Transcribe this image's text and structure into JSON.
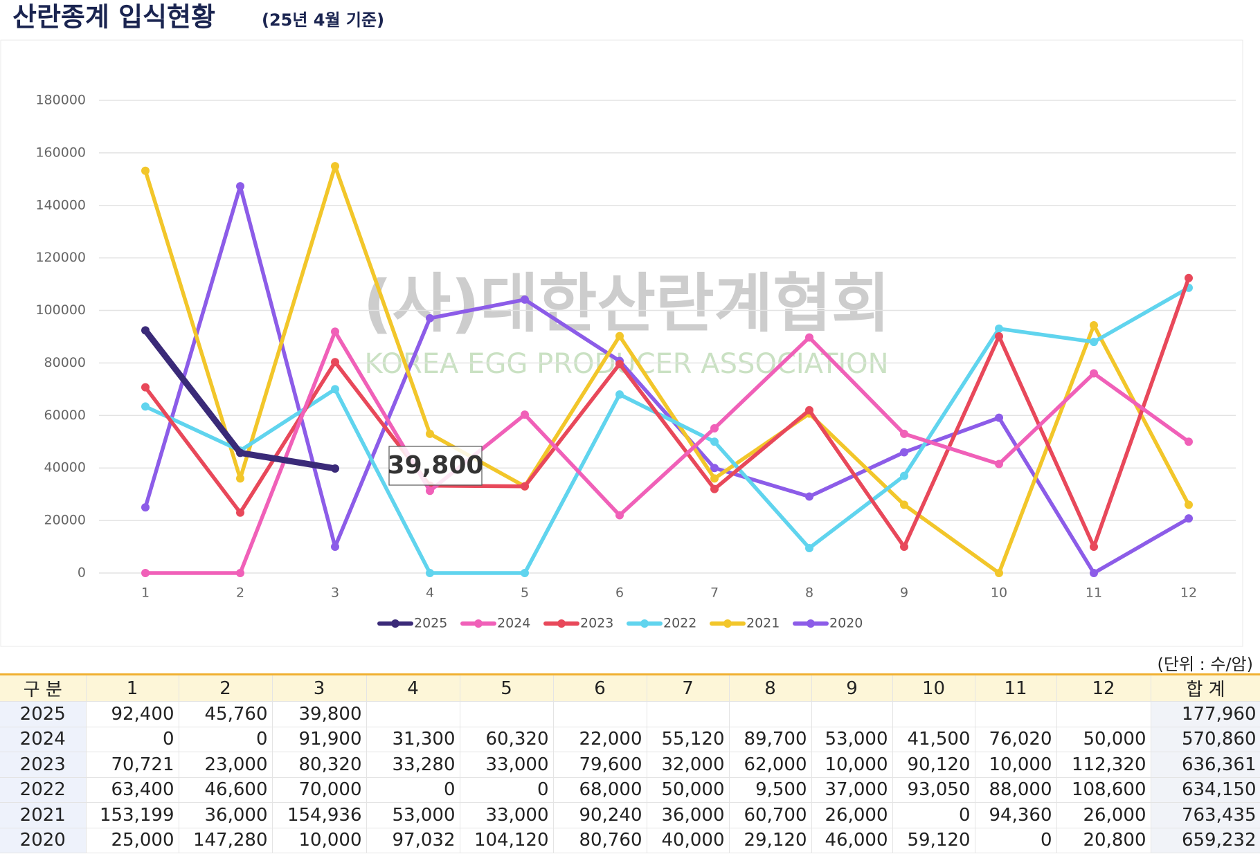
{
  "chart_data": {
    "type": "line",
    "title": "산란종계 입식현황",
    "subtitle": "(25년 4월 기준)",
    "watermark": "(사)대한산란계협회",
    "watermark_sub": "KOREA EGG PRODUCER ASSOCIATION",
    "categories": [
      "1",
      "2",
      "3",
      "4",
      "5",
      "6",
      "7",
      "8",
      "9",
      "10",
      "11",
      "12"
    ],
    "series": [
      {
        "name": "2025",
        "color": "#3a2a78",
        "values": [
          92400,
          45760,
          39800,
          null,
          null,
          null,
          null,
          null,
          null,
          null,
          null,
          null
        ]
      },
      {
        "name": "2024",
        "color": "#f060b8",
        "values": [
          0,
          0,
          91900,
          31300,
          60320,
          22000,
          55120,
          89700,
          53000,
          41500,
          76020,
          50000
        ]
      },
      {
        "name": "2023",
        "color": "#e8485a",
        "values": [
          70721,
          23000,
          80320,
          33280,
          33000,
          79600,
          32000,
          62000,
          10000,
          90120,
          10000,
          112320
        ]
      },
      {
        "name": "2022",
        "color": "#60d4ee",
        "values": [
          63400,
          46600,
          70000,
          0,
          0,
          68000,
          50000,
          9500,
          37000,
          93050,
          88000,
          108600
        ]
      },
      {
        "name": "2021",
        "color": "#f2c62a",
        "values": [
          153199,
          36000,
          154936,
          53000,
          33000,
          90240,
          36000,
          60700,
          26000,
          0,
          94360,
          26000
        ]
      },
      {
        "name": "2020",
        "color": "#8c5ce8",
        "values": [
          25000,
          147280,
          10000,
          97032,
          104120,
          80760,
          40000,
          29120,
          46000,
          59120,
          0,
          20800
        ]
      }
    ],
    "annotation": "39,800",
    "ylim": [
      0,
      180000
    ],
    "yticks": [
      0,
      20000,
      40000,
      60000,
      80000,
      100000,
      120000,
      140000,
      160000,
      180000
    ],
    "grid": true,
    "legend": "bottom"
  },
  "unit": "(단위 : 수/암)",
  "table": {
    "header": [
      "구 분",
      "1",
      "2",
      "3",
      "4",
      "5",
      "6",
      "7",
      "8",
      "9",
      "10",
      "11",
      "12",
      "합 계"
    ],
    "rows": [
      {
        "label": "2025",
        "cells": [
          "92,400",
          "45,760",
          "39,800"
        ],
        "total": "177,960"
      },
      {
        "label": "2024",
        "cells": [
          "0",
          "0",
          "91,900",
          "31,300",
          "60,320",
          "22,000",
          "55,120",
          "89,700",
          "53,000",
          "41,500",
          "76,020",
          "50,000"
        ],
        "total": "570,860"
      },
      {
        "label": "2023",
        "cells": [
          "70,721",
          "23,000",
          "80,320",
          "33,280",
          "33,000",
          "79,600",
          "32,000",
          "62,000",
          "10,000",
          "90,120",
          "10,000",
          "112,320"
        ],
        "total": "636,361"
      },
      {
        "label": "2022",
        "cells": [
          "63,400",
          "46,600",
          "70,000",
          "0",
          "0",
          "68,000",
          "50,000",
          "9,500",
          "37,000",
          "93,050",
          "88,000",
          "108,600"
        ],
        "total": "634,150"
      },
      {
        "label": "2021",
        "cells": [
          "153,199",
          "36,000",
          "154,936",
          "53,000",
          "33,000",
          "90,240",
          "36,000",
          "60,700",
          "26,000",
          "0",
          "94,360",
          "26,000"
        ],
        "total": "763,435"
      },
      {
        "label": "2020",
        "cells": [
          "25,000",
          "147,280",
          "10,000",
          "97,032",
          "104,120",
          "80,760",
          "40,000",
          "29,120",
          "46,000",
          "59,120",
          "0",
          "20,800"
        ],
        "total": "659,232"
      }
    ]
  }
}
